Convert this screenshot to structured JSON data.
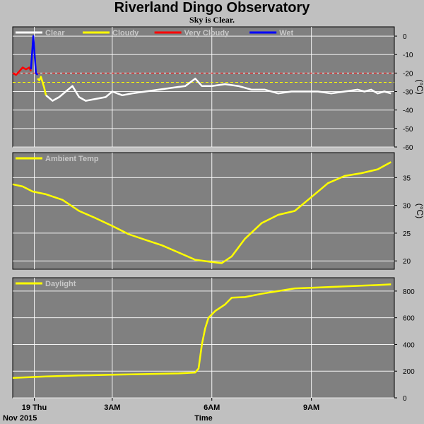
{
  "header": {
    "title": "Riverland Dingo Observatory",
    "subtitle": "Sky is Clear."
  },
  "footer": {
    "date_label": "Nov 2015",
    "time_label": "Time"
  },
  "colors": {
    "panel_bg": "#808080",
    "page_bg": "#c0c0c0",
    "clear": "#ffffff",
    "cloudy": "#ffff00",
    "very_cloudy": "#ff0000",
    "wet": "#0000ff",
    "ambient": "#ffff00",
    "daylight": "#ffff00",
    "threshold_cloudy": "#ffff00",
    "threshold_very_cloudy": "#ff0000",
    "grid": "#ffffff"
  },
  "chart_data": [
    {
      "id": "sky",
      "type": "line",
      "ylabel": "(°C)",
      "ylim": [
        -60,
        5
      ],
      "yticks": [
        0,
        -10,
        -20,
        -30,
        -40,
        -50,
        -60
      ],
      "xlim": [
        0,
        11.5
      ],
      "xticks": [
        {
          "x": 0.65,
          "label": "19 Thu"
        },
        {
          "x": 3,
          "label": "3AM"
        },
        {
          "x": 6,
          "label": "6AM"
        },
        {
          "x": 9,
          "label": "9AM"
        }
      ],
      "grid": true,
      "legend_position": "top-left",
      "thresholds": [
        {
          "y": -20,
          "color_key": "threshold_very_cloudy"
        },
        {
          "y": -25,
          "color_key": "threshold_cloudy"
        }
      ],
      "series": [
        {
          "name": "Clear",
          "color_key": "clear",
          "x": [
            1.0,
            1.2,
            1.4,
            1.6,
            1.8,
            2.0,
            2.2,
            2.5,
            2.8,
            3.0,
            3.3,
            3.6,
            4.0,
            4.4,
            4.8,
            5.2,
            5.5,
            5.7,
            6.0,
            6.4,
            6.8,
            7.2,
            7.6,
            8.0,
            8.4,
            8.8,
            9.2,
            9.6,
            10.0,
            10.4,
            10.6,
            10.8,
            11.0,
            11.2,
            11.4
          ],
          "y": [
            -32,
            -35,
            -33,
            -30,
            -27,
            -33,
            -35,
            -34,
            -33,
            -30,
            -32,
            -31,
            -30,
            -29,
            -28,
            -27,
            -23,
            -27,
            -27,
            -26,
            -27,
            -29,
            -29,
            -31,
            -30,
            -30,
            -30,
            -31,
            -30,
            -29,
            -30,
            -29,
            -31,
            -30,
            -31
          ]
        },
        {
          "name": "Cloudy",
          "color_key": "cloudy",
          "x": [
            0.75,
            0.8,
            0.85,
            0.9,
            0.95,
            1.0
          ],
          "y": [
            -23,
            -24,
            -22,
            -25,
            -28,
            -32
          ]
        },
        {
          "name": "Very Cloudy",
          "color_key": "very_cloudy",
          "x": [
            0.0,
            0.1,
            0.2,
            0.3,
            0.4,
            0.5,
            0.55
          ],
          "y": [
            -20,
            -21,
            -19,
            -17,
            -18,
            -17,
            -19
          ]
        },
        {
          "name": "Wet",
          "color_key": "wet",
          "x": [
            0.55,
            0.6,
            0.62,
            0.66,
            0.7,
            0.75
          ],
          "y": [
            -18,
            -5,
            0,
            -10,
            -20,
            -21
          ]
        }
      ]
    },
    {
      "id": "ambient",
      "type": "line",
      "ylabel": "(°C)",
      "ylim": [
        18.5,
        39.5
      ],
      "yticks": [
        20,
        25,
        30,
        35
      ],
      "xlim": [
        0,
        11.5
      ],
      "grid": true,
      "legend_position": "top-left",
      "series": [
        {
          "name": "Ambient Temp",
          "color_key": "ambient",
          "x": [
            0.0,
            0.3,
            0.6,
            1.0,
            1.5,
            2.0,
            2.5,
            3.0,
            3.5,
            4.0,
            4.5,
            5.0,
            5.5,
            6.0,
            6.3,
            6.6,
            7.0,
            7.5,
            8.0,
            8.5,
            9.0,
            9.5,
            10.0,
            10.5,
            11.0,
            11.4
          ],
          "y": [
            33.8,
            33.4,
            32.5,
            32.0,
            31.0,
            29.0,
            27.7,
            26.3,
            24.8,
            23.8,
            22.8,
            21.5,
            20.2,
            19.8,
            19.6,
            20.8,
            24.0,
            26.8,
            28.3,
            29.0,
            31.5,
            34.0,
            35.3,
            35.8,
            36.5,
            37.8
          ]
        }
      ]
    },
    {
      "id": "daylight",
      "type": "line",
      "ylabel": "",
      "ylim": [
        0,
        900
      ],
      "yticks": [
        0,
        200,
        400,
        600,
        800
      ],
      "xlim": [
        0,
        11.5
      ],
      "grid": true,
      "legend_position": "top-left",
      "series": [
        {
          "name": "Daylight",
          "color_key": "daylight",
          "x": [
            0.0,
            1.0,
            2.0,
            3.0,
            4.0,
            5.0,
            5.5,
            5.6,
            5.7,
            5.8,
            5.9,
            6.1,
            6.4,
            6.6,
            7.0,
            7.5,
            8.0,
            8.5,
            9.0,
            9.5,
            10.0,
            10.5,
            11.0,
            11.4
          ],
          "y": [
            150,
            160,
            168,
            173,
            178,
            183,
            190,
            220,
            400,
            520,
            600,
            650,
            700,
            750,
            755,
            780,
            800,
            820,
            825,
            830,
            835,
            840,
            845,
            850
          ]
        }
      ]
    }
  ]
}
